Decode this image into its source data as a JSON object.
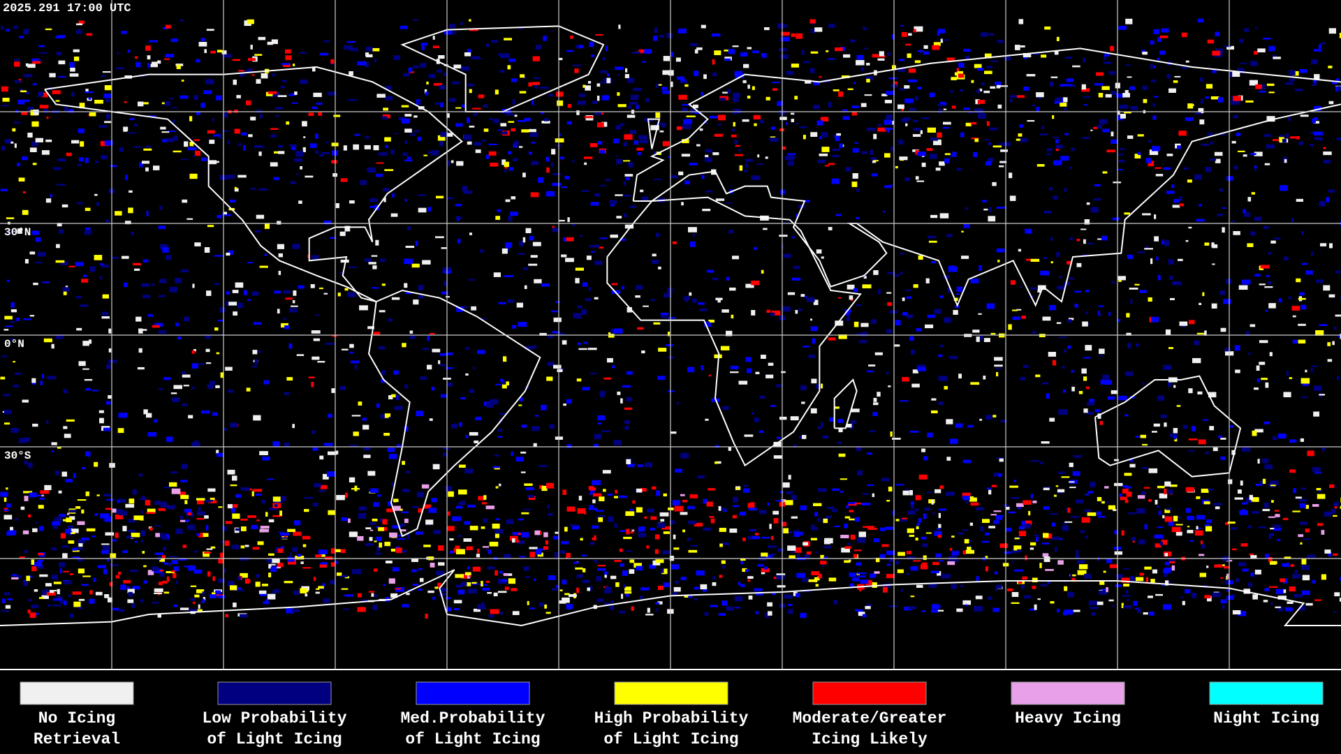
{
  "header": {
    "timestamp": "2025.291 17:00 UTC"
  },
  "map": {
    "latitude_labels": [
      "30°N",
      "0°N",
      "30°S"
    ]
  },
  "legend": {
    "items": [
      {
        "lines": [
          "No Icing",
          "Retrieval"
        ],
        "color": "#f0f0f0"
      },
      {
        "lines": [
          "Low Probability",
          "of Light Icing"
        ],
        "color": "#000080"
      },
      {
        "lines": [
          "Med.Probability",
          "of Light Icing"
        ],
        "color": "#0000ff"
      },
      {
        "lines": [
          "High Probability",
          "of Light Icing"
        ],
        "color": "#ffff00"
      },
      {
        "lines": [
          "Moderate/Greater",
          "Icing Likely"
        ],
        "color": "#ff0000"
      },
      {
        "lines": [
          "Heavy Icing"
        ],
        "color": "#e8a0e8"
      },
      {
        "lines": [
          "Night Icing"
        ],
        "color": "#00ffff"
      }
    ]
  }
}
